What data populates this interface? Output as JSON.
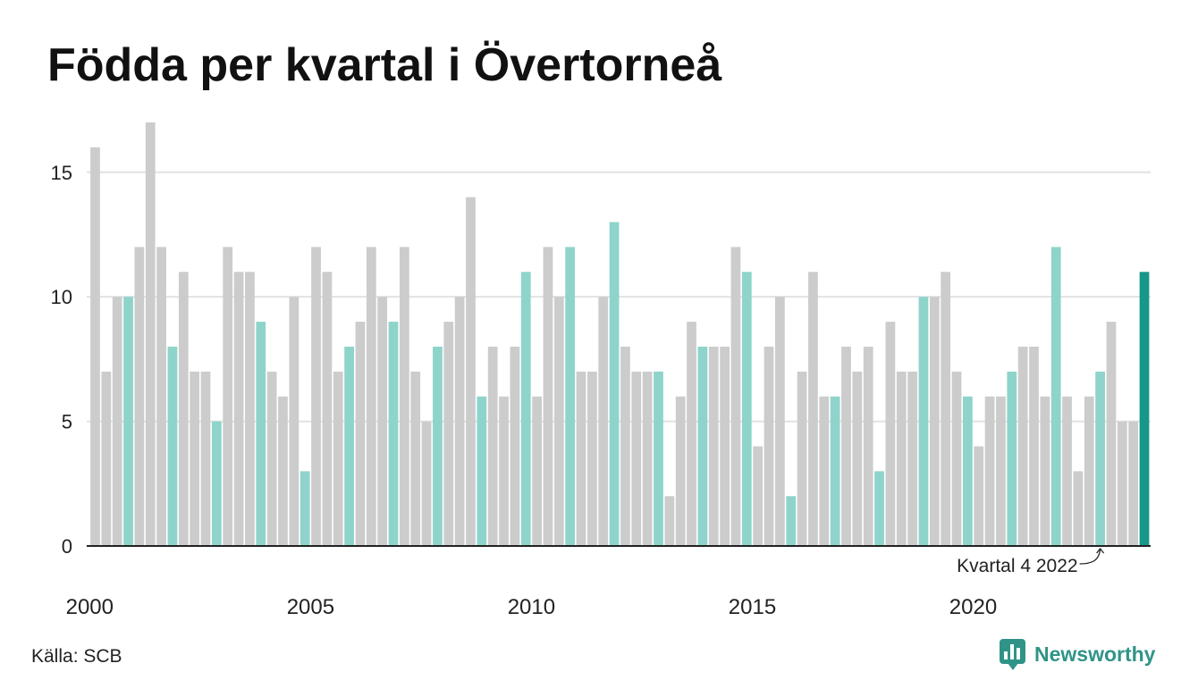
{
  "chart_data": {
    "type": "bar",
    "title": "Födda per kvartal i Övertorneå",
    "categories": [
      "2000-Q1",
      "2000-Q2",
      "2000-Q3",
      "2000-Q4",
      "2001-Q1",
      "2001-Q2",
      "2001-Q3",
      "2001-Q4",
      "2002-Q1",
      "2002-Q2",
      "2002-Q3",
      "2002-Q4",
      "2003-Q1",
      "2003-Q2",
      "2003-Q3",
      "2003-Q4",
      "2004-Q1",
      "2004-Q2",
      "2004-Q3",
      "2004-Q4",
      "2005-Q1",
      "2005-Q2",
      "2005-Q3",
      "2005-Q4",
      "2006-Q1",
      "2006-Q2",
      "2006-Q3",
      "2006-Q4",
      "2007-Q1",
      "2007-Q2",
      "2007-Q3",
      "2007-Q4",
      "2008-Q1",
      "2008-Q2",
      "2008-Q3",
      "2008-Q4",
      "2009-Q1",
      "2009-Q2",
      "2009-Q3",
      "2009-Q4",
      "2010-Q1",
      "2010-Q2",
      "2010-Q3",
      "2010-Q4",
      "2011-Q1",
      "2011-Q2",
      "2011-Q3",
      "2011-Q4",
      "2012-Q1",
      "2012-Q2",
      "2012-Q3",
      "2012-Q4",
      "2013-Q1",
      "2013-Q2",
      "2013-Q3",
      "2013-Q4",
      "2014-Q1",
      "2014-Q2",
      "2014-Q3",
      "2014-Q4",
      "2015-Q1",
      "2015-Q2",
      "2015-Q3",
      "2015-Q4",
      "2016-Q1",
      "2016-Q2",
      "2016-Q3",
      "2016-Q4",
      "2017-Q1",
      "2017-Q2",
      "2017-Q3",
      "2017-Q4",
      "2018-Q1",
      "2018-Q2",
      "2018-Q3",
      "2018-Q4",
      "2019-Q1",
      "2019-Q2",
      "2019-Q3",
      "2019-Q4",
      "2020-Q1",
      "2020-Q2",
      "2020-Q3",
      "2020-Q4",
      "2021-Q1",
      "2021-Q2",
      "2021-Q3",
      "2021-Q4",
      "2022-Q1",
      "2022-Q2",
      "2022-Q3",
      "2022-Q4",
      "2023-Q1",
      "2023-Q2",
      "2023-Q3",
      "2023-Q4"
    ],
    "values": [
      16,
      7,
      10,
      10,
      12,
      17,
      12,
      8,
      11,
      7,
      7,
      5,
      12,
      11,
      11,
      9,
      7,
      6,
      10,
      3,
      12,
      11,
      7,
      8,
      9,
      12,
      10,
      9,
      12,
      7,
      5,
      8,
      9,
      10,
      14,
      6,
      8,
      6,
      8,
      11,
      6,
      12,
      10,
      12,
      7,
      7,
      10,
      13,
      8,
      7,
      7,
      7,
      2,
      6,
      9,
      8,
      8,
      8,
      12,
      11,
      4,
      8,
      10,
      2,
      7,
      11,
      6,
      6,
      8,
      7,
      8,
      3,
      9,
      7,
      7,
      10,
      10,
      11,
      7,
      6,
      4,
      6,
      6,
      7,
      8,
      8,
      6,
      12,
      6,
      3,
      6,
      7,
      9,
      5,
      5,
      11
    ],
    "x_ticks": [
      "2000",
      "2005",
      "2010",
      "2015",
      "2020"
    ],
    "y_ticks": [
      0,
      5,
      10,
      15
    ],
    "ylim": [
      0,
      17
    ],
    "grid": true,
    "annotations": [
      {
        "text": "Kvartal 4 2022",
        "x": "2022-Q4"
      }
    ],
    "colors": {
      "bar": "#cccccc",
      "q4_bar": "#8ed4cb",
      "latest_bar": "#17968a",
      "gridline": "#e2e2e2",
      "axis": "#222222"
    }
  },
  "source": "Källa: SCB",
  "brand": {
    "name": "Newsworthy",
    "icon": "newsworthy-logo-icon",
    "color": "#2f9487"
  }
}
